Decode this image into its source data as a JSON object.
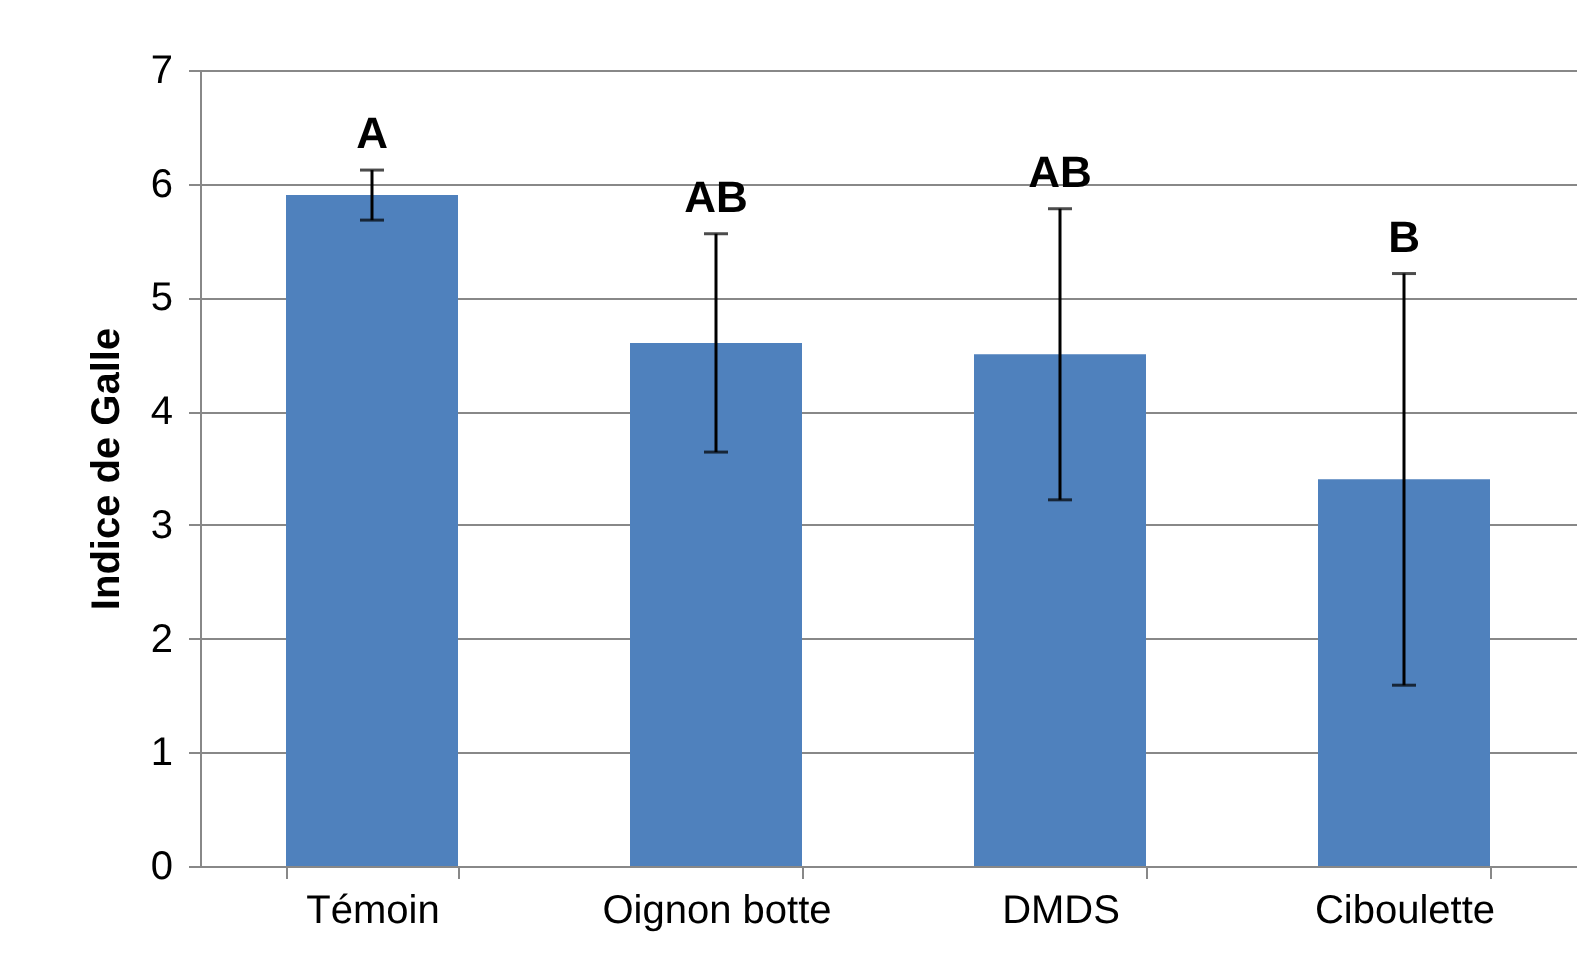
{
  "chart_data": {
    "type": "bar",
    "ylabel": "Indice de Galle",
    "categories": [
      "Témoin",
      "Oignon botte",
      "DMDS",
      "Ciboulette"
    ],
    "values": [
      5.9,
      4.6,
      4.5,
      3.4
    ],
    "color": "#4f81bd",
    "errors": [
      0.22,
      0.96,
      1.28,
      1.81
    ],
    "ylim": [
      0,
      7
    ],
    "yticks": [
      0,
      1,
      2,
      3,
      4,
      5,
      6,
      7
    ],
    "grid": "y",
    "annotations": [
      "A",
      "AB",
      "AB",
      "B"
    ]
  }
}
